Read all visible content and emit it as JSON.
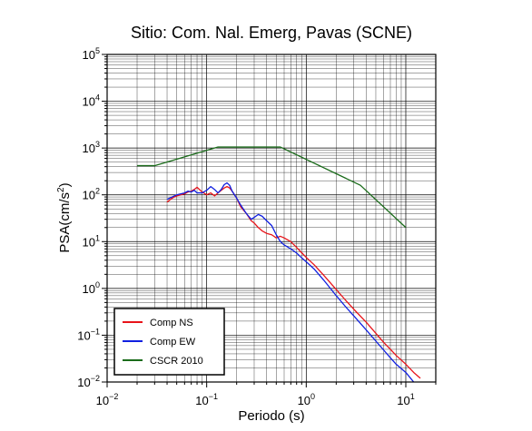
{
  "chart_data": {
    "type": "line",
    "title": "Sitio: Com. Nal. Emerg, Pavas (SCNE)",
    "xlabel": "Periodo (s)",
    "ylabel": {
      "base": "PSA(cm/s",
      "sup": "2",
      "tail": ")"
    },
    "x_scale": "log",
    "y_scale": "log",
    "xlim": [
      0.01,
      20
    ],
    "ylim": [
      0.01,
      100000
    ],
    "x_ticks": [
      {
        "value": 0.01,
        "base": "10",
        "exp": "−2"
      },
      {
        "value": 0.1,
        "base": "10",
        "exp": "−1"
      },
      {
        "value": 1,
        "base": "10",
        "exp": "0"
      },
      {
        "value": 10,
        "base": "10",
        "exp": "1"
      }
    ],
    "y_ticks": [
      {
        "value": 0.01,
        "base": "10",
        "exp": "−2"
      },
      {
        "value": 0.1,
        "base": "10",
        "exp": "−1"
      },
      {
        "value": 1,
        "base": "10",
        "exp": "0"
      },
      {
        "value": 10,
        "base": "10",
        "exp": "1"
      },
      {
        "value": 100,
        "base": "10",
        "exp": "2"
      },
      {
        "value": 1000,
        "base": "10",
        "exp": "3"
      },
      {
        "value": 10000,
        "base": "10",
        "exp": "4"
      },
      {
        "value": 100000,
        "base": "10",
        "exp": "5"
      }
    ],
    "grid": true,
    "legend": "bottom-left",
    "series": [
      {
        "name": "Comp NS",
        "color": "#e8141a",
        "x": [
          0.04,
          0.045,
          0.05,
          0.055,
          0.06,
          0.065,
          0.07,
          0.075,
          0.08,
          0.09,
          0.1,
          0.11,
          0.12,
          0.13,
          0.14,
          0.15,
          0.16,
          0.17,
          0.18,
          0.2,
          0.22,
          0.25,
          0.28,
          0.3,
          0.33,
          0.36,
          0.4,
          0.45,
          0.5,
          0.55,
          0.6,
          0.7,
          0.8,
          0.9,
          1.0,
          1.2,
          1.5,
          2.0,
          2.5,
          3.0,
          4.0,
          5.0,
          6.0,
          7.0,
          8.0,
          10.0,
          12.0,
          14.0
        ],
        "y": [
          70,
          85,
          95,
          100,
          105,
          115,
          120,
          130,
          145,
          115,
          100,
          110,
          95,
          110,
          125,
          140,
          150,
          140,
          120,
          85,
          55,
          40,
          28,
          25,
          20,
          17,
          15,
          14,
          12,
          13,
          12,
          10,
          7.5,
          5.8,
          4.6,
          3.2,
          1.9,
          0.95,
          0.55,
          0.36,
          0.19,
          0.11,
          0.07,
          0.05,
          0.037,
          0.024,
          0.016,
          0.012
        ]
      },
      {
        "name": "Comp EW",
        "color": "#1020e0",
        "x": [
          0.04,
          0.045,
          0.05,
          0.055,
          0.06,
          0.065,
          0.07,
          0.075,
          0.08,
          0.09,
          0.1,
          0.11,
          0.12,
          0.13,
          0.14,
          0.15,
          0.16,
          0.17,
          0.18,
          0.2,
          0.22,
          0.25,
          0.28,
          0.3,
          0.33,
          0.36,
          0.4,
          0.45,
          0.5,
          0.55,
          0.6,
          0.7,
          0.8,
          0.9,
          1.0,
          1.2,
          1.5,
          2.0,
          2.5,
          3.0,
          4.0,
          5.0,
          6.0,
          7.0,
          8.0,
          10.0,
          12.0
        ],
        "y": [
          80,
          90,
          100,
          105,
          110,
          120,
          115,
          125,
          110,
          110,
          125,
          150,
          130,
          110,
          130,
          165,
          180,
          160,
          120,
          85,
          60,
          40,
          30,
          33,
          38,
          35,
          28,
          22,
          14,
          10,
          8.5,
          7,
          5.7,
          4.5,
          3.7,
          2.6,
          1.5,
          0.7,
          0.4,
          0.26,
          0.13,
          0.075,
          0.048,
          0.033,
          0.024,
          0.016,
          0.01
        ]
      },
      {
        "name": "CSCR 2010",
        "color": "#1a6b1a",
        "x": [
          0.02,
          0.03,
          0.13,
          0.55,
          3.5,
          10.0
        ],
        "y": [
          420,
          420,
          1050,
          1050,
          160,
          20
        ]
      }
    ]
  }
}
